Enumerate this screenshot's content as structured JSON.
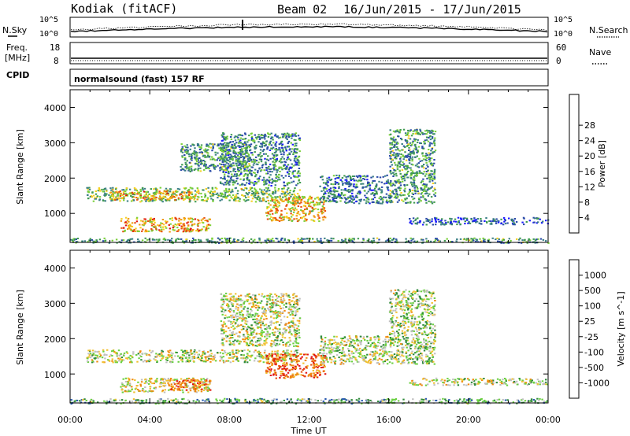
{
  "header": {
    "station": "Kodiak (fitACF)",
    "beam": "Beam 02",
    "date_range": "16/Jun/2015 - 17/Jun/2015"
  },
  "strips": {
    "nsky_label": "N.Sky",
    "nsearch_label": "N.Search",
    "freq_label": "Freq.",
    "freq_unit": "[MHz]",
    "nave_label": "Nave",
    "cpid_label": "CPID",
    "cpid_text": "normalsound (fast) 157 RF",
    "noise_left_ticks": [
      "10^5",
      "10^0"
    ],
    "noise_right_ticks": [
      "10^5",
      "10^0"
    ],
    "freq_left_ticks": [
      "18",
      "8"
    ],
    "nave_right_ticks": [
      "60",
      "0"
    ]
  },
  "axes": {
    "ylabel": "Slant Range [km]",
    "xlabel": "Time UT",
    "y_ticks": [
      "1000",
      "2000",
      "3000",
      "4000"
    ],
    "x_ticks": [
      "00:00",
      "04:00",
      "08:00",
      "12:00",
      "16:00",
      "20:00",
      "00:00"
    ]
  },
  "chart_data": [
    {
      "type": "heatmap",
      "panel": "power",
      "ylabel": "Slant Range [km]",
      "xlabel": "",
      "xlim": [
        0,
        24
      ],
      "ylim": [
        180,
        4500
      ],
      "colorbar_label": "Power [dB]",
      "colorbar_ticks": [
        "4",
        "8",
        "12",
        "16",
        "20",
        "24",
        "28"
      ],
      "colorbar_colors": [
        "#1a1aff",
        "#2a4aa8",
        "#3b7f86",
        "#3f9a4f",
        "#7ad03a",
        "#f5d020",
        "#f09a10",
        "#e85010",
        "#e01414"
      ],
      "regions": [
        {
          "t0": 0.8,
          "t1": 11.5,
          "r0": 1350,
          "r1": 1750,
          "level": 0.45
        },
        {
          "t0": 2.0,
          "t1": 6.5,
          "r0": 1400,
          "r1": 1650,
          "level": 0.7
        },
        {
          "t0": 2.5,
          "t1": 7.0,
          "r0": 500,
          "r1": 900,
          "level": 0.7
        },
        {
          "t0": 9.8,
          "t1": 12.8,
          "r0": 800,
          "r1": 1500,
          "level": 0.65
        },
        {
          "t0": 7.5,
          "t1": 11.5,
          "r0": 1800,
          "r1": 3300,
          "level": 0.3
        },
        {
          "t0": 5.5,
          "t1": 9.0,
          "r0": 2200,
          "r1": 3000,
          "level": 0.35
        },
        {
          "t0": 12.5,
          "t1": 16.0,
          "r0": 1300,
          "r1": 2100,
          "level": 0.25
        },
        {
          "t0": 16.0,
          "t1": 18.3,
          "r0": 1300,
          "r1": 3400,
          "level": 0.35
        },
        {
          "t0": 17.0,
          "t1": 24.0,
          "r0": 700,
          "r1": 900,
          "level": 0.2
        },
        {
          "t0": 0.0,
          "t1": 24.0,
          "r0": 180,
          "r1": 320,
          "level": 0.35
        }
      ]
    },
    {
      "type": "heatmap",
      "panel": "velocity",
      "ylabel": "Slant Range [km]",
      "xlabel": "Time UT",
      "xlim": [
        0,
        24
      ],
      "ylim": [
        180,
        4500
      ],
      "colorbar_label": "Velocity [m s^-1]",
      "colorbar_ticks": [
        "1000",
        "500",
        "100",
        "25",
        "-25",
        "-100",
        "-500",
        "-1000"
      ],
      "colorbar_colors": [
        "#1a2aff",
        "#2a5ab0",
        "#2f8a3a",
        "#6ad040",
        "#c0c0c0",
        "#f0c030",
        "#f08a10",
        "#e85010",
        "#e01414"
      ],
      "regions": [
        {
          "t0": 0.8,
          "t1": 11.5,
          "r0": 1350,
          "r1": 1700,
          "level": 0.5
        },
        {
          "t0": 2.5,
          "t1": 7.0,
          "r0": 500,
          "r1": 900,
          "level": 0.55
        },
        {
          "t0": 5.0,
          "t1": 7.0,
          "r0": 550,
          "r1": 850,
          "level": 0.8
        },
        {
          "t0": 9.8,
          "t1": 12.8,
          "r0": 900,
          "r1": 1600,
          "level": 0.8
        },
        {
          "t0": 7.5,
          "t1": 11.5,
          "r0": 1800,
          "r1": 3300,
          "level": 0.5
        },
        {
          "t0": 12.5,
          "t1": 16.0,
          "r0": 1300,
          "r1": 2100,
          "level": 0.5
        },
        {
          "t0": 16.0,
          "t1": 18.3,
          "r0": 1300,
          "r1": 3400,
          "level": 0.45
        },
        {
          "t0": 17.0,
          "t1": 24.0,
          "r0": 700,
          "r1": 900,
          "level": 0.5
        },
        {
          "t0": 0.0,
          "t1": 24.0,
          "r0": 180,
          "r1": 320,
          "level": 0.35
        }
      ]
    }
  ]
}
